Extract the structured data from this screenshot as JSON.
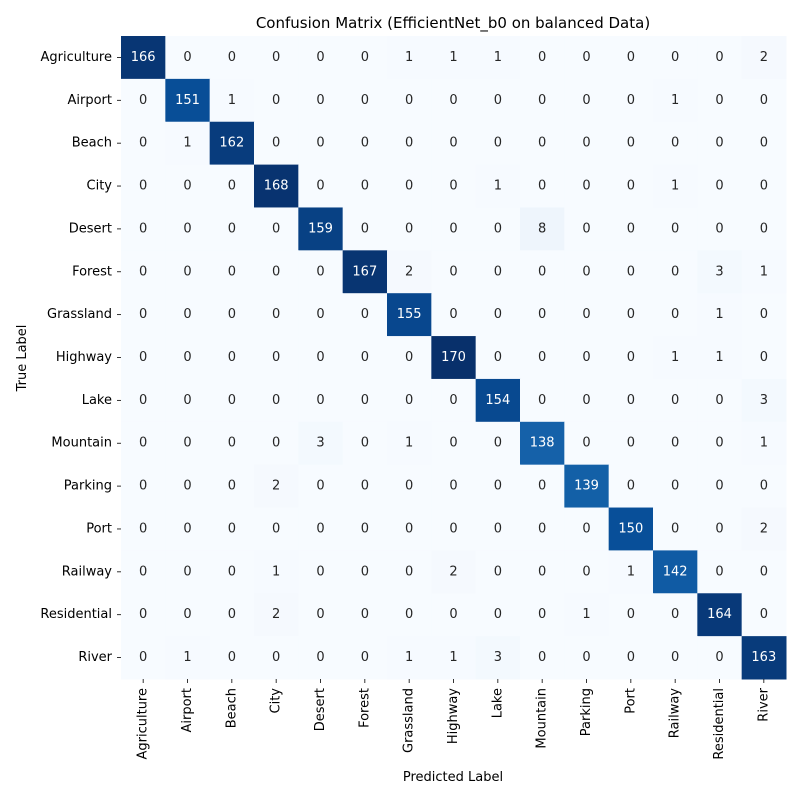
{
  "chart_data": {
    "type": "heatmap",
    "title": "Confusion Matrix (EfficientNet_b0 on balanced Data)",
    "xlabel": "Predicted Label",
    "ylabel": "True Label",
    "colormap": "Blues",
    "color_low": "#f7fbff",
    "color_high": "#08306b",
    "x_categories": [
      "Agriculture",
      "Airport",
      "Beach",
      "City",
      "Desert",
      "Forest",
      "Grassland",
      "Highway",
      "Lake",
      "Mountain",
      "Parking",
      "Port",
      "Railway",
      "Residential",
      "River"
    ],
    "y_categories": [
      "Agriculture",
      "Airport",
      "Beach",
      "City",
      "Desert",
      "Forest",
      "Grassland",
      "Highway",
      "Lake",
      "Mountain",
      "Parking",
      "Port",
      "Railway",
      "Residential",
      "River"
    ],
    "values": [
      [
        166,
        0,
        0,
        0,
        0,
        0,
        1,
        1,
        1,
        0,
        0,
        0,
        0,
        0,
        2
      ],
      [
        0,
        151,
        1,
        0,
        0,
        0,
        0,
        0,
        0,
        0,
        0,
        0,
        1,
        0,
        0
      ],
      [
        0,
        1,
        162,
        0,
        0,
        0,
        0,
        0,
        0,
        0,
        0,
        0,
        0,
        0,
        0
      ],
      [
        0,
        0,
        0,
        168,
        0,
        0,
        0,
        0,
        1,
        0,
        0,
        0,
        1,
        0,
        0
      ],
      [
        0,
        0,
        0,
        0,
        159,
        0,
        0,
        0,
        0,
        8,
        0,
        0,
        0,
        0,
        0
      ],
      [
        0,
        0,
        0,
        0,
        0,
        167,
        2,
        0,
        0,
        0,
        0,
        0,
        0,
        3,
        1
      ],
      [
        0,
        0,
        0,
        0,
        0,
        0,
        155,
        0,
        0,
        0,
        0,
        0,
        0,
        1,
        0
      ],
      [
        0,
        0,
        0,
        0,
        0,
        0,
        0,
        170,
        0,
        0,
        0,
        0,
        1,
        1,
        0
      ],
      [
        0,
        0,
        0,
        0,
        0,
        0,
        0,
        0,
        154,
        0,
        0,
        0,
        0,
        0,
        3
      ],
      [
        0,
        0,
        0,
        0,
        3,
        0,
        1,
        0,
        0,
        138,
        0,
        0,
        0,
        0,
        1
      ],
      [
        0,
        0,
        0,
        2,
        0,
        0,
        0,
        0,
        0,
        0,
        139,
        0,
        0,
        0,
        0
      ],
      [
        0,
        0,
        0,
        0,
        0,
        0,
        0,
        0,
        0,
        0,
        0,
        150,
        0,
        0,
        2
      ],
      [
        0,
        0,
        0,
        1,
        0,
        0,
        0,
        2,
        0,
        0,
        0,
        1,
        142,
        0,
        0
      ],
      [
        0,
        0,
        0,
        2,
        0,
        0,
        0,
        0,
        0,
        0,
        1,
        0,
        0,
        164,
        0
      ],
      [
        0,
        1,
        0,
        0,
        0,
        0,
        1,
        1,
        3,
        0,
        0,
        0,
        0,
        0,
        163
      ]
    ]
  }
}
